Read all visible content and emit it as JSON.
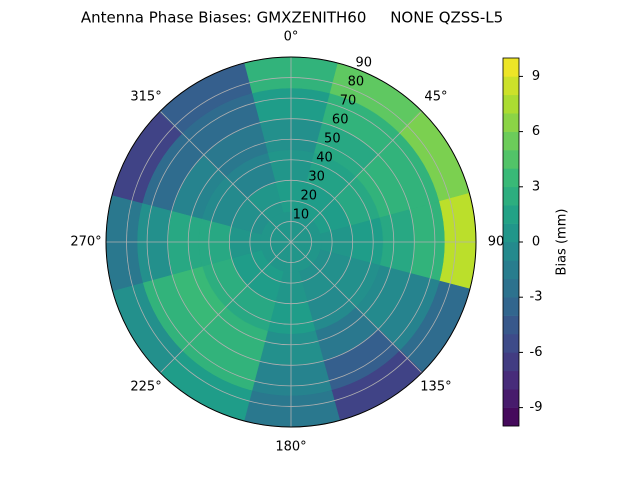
{
  "chart_data": {
    "type": "polar_contour",
    "title": "Antenna Phase Biases: GMXZENITH60     NONE QZSS-L5",
    "azimuth": [
      0,
      30,
      60,
      90,
      120,
      150,
      180,
      210,
      240,
      270,
      300,
      330
    ],
    "zenith_edges": [
      0,
      15,
      30,
      45,
      60,
      75,
      90
    ],
    "values": [
      [
        0.5,
        0.5,
        0.5,
        0.5,
        0.5,
        0.5,
        0.5,
        0.5,
        0.5,
        0.5,
        0.5,
        0.5
      ],
      [
        1,
        1,
        1,
        0.5,
        0,
        0,
        0.5,
        1,
        1,
        0.5,
        0,
        0.5
      ],
      [
        0.5,
        1.5,
        2,
        1,
        0,
        -0.5,
        1,
        2,
        2.5,
        2,
        -0.5,
        -1
      ],
      [
        0,
        2,
        3,
        2,
        -0.5,
        -2,
        0,
        3,
        3.5,
        2,
        -1,
        -2
      ],
      [
        1,
        3,
        3,
        3,
        -1,
        -4,
        -1,
        3,
        3,
        0,
        -3,
        -3
      ],
      [
        3,
        5,
        6,
        8,
        -3,
        -6,
        -2,
        1,
        0,
        -2,
        -6,
        -4
      ]
    ],
    "rlim": [
      0,
      90
    ],
    "rticks": [
      10,
      20,
      30,
      40,
      50,
      60,
      70,
      80,
      90
    ],
    "thetaticks": [
      {
        "value": 0,
        "label": "0°"
      },
      {
        "value": 45,
        "label": "45°"
      },
      {
        "value": 90,
        "label": "90"
      },
      {
        "value": 135,
        "label": "135°"
      },
      {
        "value": 180,
        "label": "180°"
      },
      {
        "value": 225,
        "label": "225°"
      },
      {
        "value": 270,
        "label": "270°"
      },
      {
        "value": 315,
        "label": "315°"
      }
    ],
    "clim": [
      -10,
      10
    ],
    "cticks": [
      -9,
      -6,
      -3,
      0,
      3,
      6,
      9
    ],
    "colorbar_label": "Bias (mm)",
    "colormap": "viridis",
    "grid": true
  }
}
